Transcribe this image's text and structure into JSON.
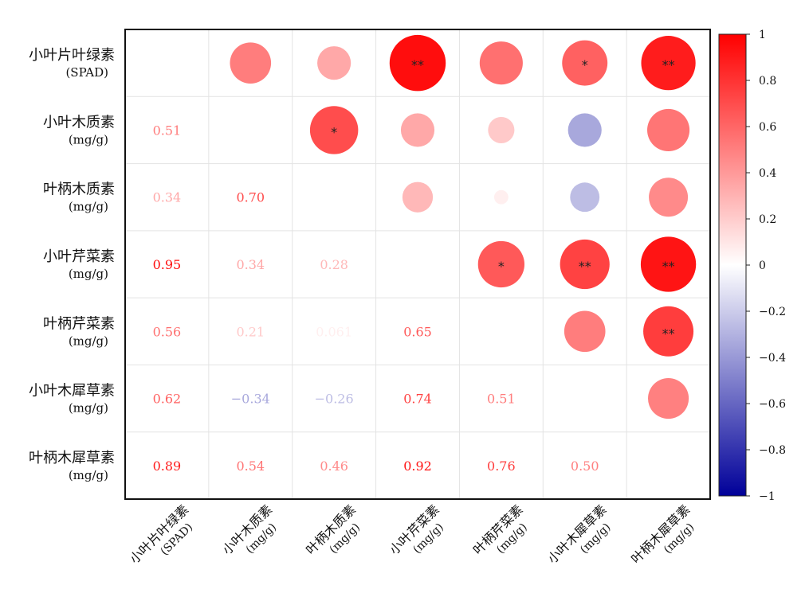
{
  "chart_data": {
    "type": "heatmap",
    "variables": [
      {
        "name": "小叶片叶绿素",
        "unit": "(SPAD)"
      },
      {
        "name": "小叶木质素",
        "unit": "(mg/g)"
      },
      {
        "name": "叶柄木质素",
        "unit": "(mg/g)"
      },
      {
        "name": "小叶芹菜素",
        "unit": "(mg/g)"
      },
      {
        "name": "叶柄芹菜素",
        "unit": "(mg/g)"
      },
      {
        "name": "小叶木犀草素",
        "unit": "(mg/g)"
      },
      {
        "name": "叶柄木犀草素",
        "unit": "(mg/g)"
      }
    ],
    "lower": [
      {
        "row": 1,
        "col": 0,
        "label": "0.51",
        "value": 0.51
      },
      {
        "row": 2,
        "col": 0,
        "label": "0.34",
        "value": 0.34
      },
      {
        "row": 2,
        "col": 1,
        "label": "0.70",
        "value": 0.7
      },
      {
        "row": 3,
        "col": 0,
        "label": "0.95",
        "value": 0.95
      },
      {
        "row": 3,
        "col": 1,
        "label": "0.34",
        "value": 0.34
      },
      {
        "row": 3,
        "col": 2,
        "label": "0.28",
        "value": 0.28
      },
      {
        "row": 4,
        "col": 0,
        "label": "0.56",
        "value": 0.56
      },
      {
        "row": 4,
        "col": 1,
        "label": "0.21",
        "value": 0.21
      },
      {
        "row": 4,
        "col": 2,
        "label": "0.061",
        "value": 0.061
      },
      {
        "row": 4,
        "col": 3,
        "label": "0.65",
        "value": 0.65
      },
      {
        "row": 5,
        "col": 0,
        "label": "0.62",
        "value": 0.62
      },
      {
        "row": 5,
        "col": 1,
        "label": "−0.34",
        "value": -0.34
      },
      {
        "row": 5,
        "col": 2,
        "label": "−0.26",
        "value": -0.26
      },
      {
        "row": 5,
        "col": 3,
        "label": "0.74",
        "value": 0.74
      },
      {
        "row": 5,
        "col": 4,
        "label": "0.51",
        "value": 0.51
      },
      {
        "row": 6,
        "col": 0,
        "label": "0.89",
        "value": 0.89
      },
      {
        "row": 6,
        "col": 1,
        "label": "0.54",
        "value": 0.54
      },
      {
        "row": 6,
        "col": 2,
        "label": "0.46",
        "value": 0.46
      },
      {
        "row": 6,
        "col": 3,
        "label": "0.92",
        "value": 0.92
      },
      {
        "row": 6,
        "col": 4,
        "label": "0.76",
        "value": 0.76
      },
      {
        "row": 6,
        "col": 5,
        "label": "0.50",
        "value": 0.5
      }
    ],
    "upper": [
      {
        "row": 0,
        "col": 1,
        "value": 0.51,
        "sig": ""
      },
      {
        "row": 0,
        "col": 2,
        "value": 0.34,
        "sig": ""
      },
      {
        "row": 0,
        "col": 3,
        "value": 0.95,
        "sig": "**"
      },
      {
        "row": 0,
        "col": 4,
        "value": 0.56,
        "sig": ""
      },
      {
        "row": 0,
        "col": 5,
        "value": 0.62,
        "sig": "*"
      },
      {
        "row": 0,
        "col": 6,
        "value": 0.89,
        "sig": "**"
      },
      {
        "row": 1,
        "col": 2,
        "value": 0.7,
        "sig": "*"
      },
      {
        "row": 1,
        "col": 3,
        "value": 0.34,
        "sig": ""
      },
      {
        "row": 1,
        "col": 4,
        "value": 0.21,
        "sig": ""
      },
      {
        "row": 1,
        "col": 5,
        "value": -0.34,
        "sig": ""
      },
      {
        "row": 1,
        "col": 6,
        "value": 0.54,
        "sig": ""
      },
      {
        "row": 2,
        "col": 3,
        "value": 0.28,
        "sig": ""
      },
      {
        "row": 2,
        "col": 4,
        "value": 0.061,
        "sig": ""
      },
      {
        "row": 2,
        "col": 5,
        "value": -0.26,
        "sig": ""
      },
      {
        "row": 2,
        "col": 6,
        "value": 0.46,
        "sig": ""
      },
      {
        "row": 3,
        "col": 4,
        "value": 0.65,
        "sig": "*"
      },
      {
        "row": 3,
        "col": 5,
        "value": 0.74,
        "sig": "**"
      },
      {
        "row": 3,
        "col": 6,
        "value": 0.92,
        "sig": "**"
      },
      {
        "row": 4,
        "col": 5,
        "value": 0.51,
        "sig": ""
      },
      {
        "row": 4,
        "col": 6,
        "value": 0.76,
        "sig": "**"
      },
      {
        "row": 5,
        "col": 6,
        "value": 0.5,
        "sig": ""
      }
    ],
    "colorbar": {
      "range": [
        -1,
        1
      ],
      "ticks": [
        "1",
        "0.8",
        "0.6",
        "0.4",
        "0.2",
        "0",
        "−0.2",
        "−0.4",
        "−0.6",
        "−0.8",
        "−1"
      ],
      "colors": {
        "negative": "#000099",
        "zero": "#ffffff",
        "positive": "#ff0000"
      }
    },
    "grid": true
  }
}
